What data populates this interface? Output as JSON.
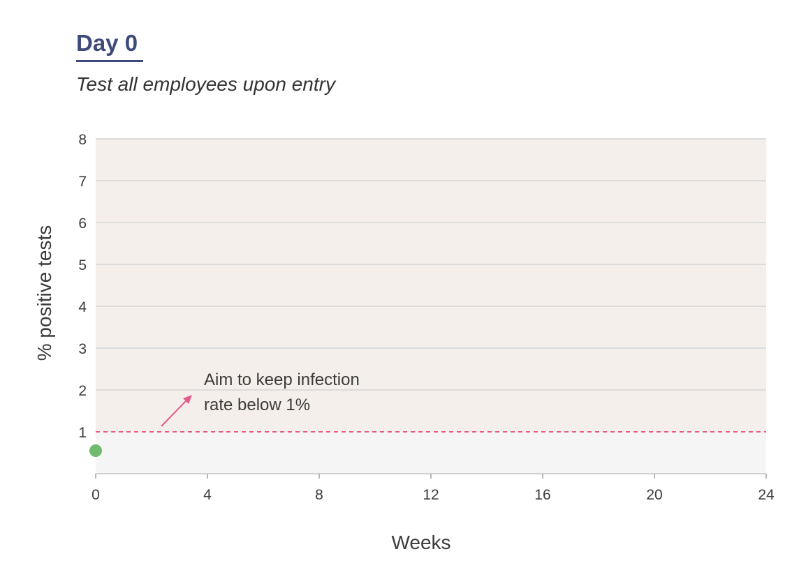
{
  "header": {
    "title": "Day 0",
    "subtitle": "Test all employees upon entry"
  },
  "chart_data": {
    "type": "scatter",
    "xlabel": "Weeks",
    "ylabel": "% positive tests",
    "xlim": [
      0,
      24
    ],
    "ylim": [
      0,
      8
    ],
    "x_ticks": [
      0,
      4,
      8,
      12,
      16,
      20,
      24
    ],
    "y_ticks": [
      1,
      2,
      3,
      4,
      5,
      6,
      7,
      8
    ],
    "grid": "horizontal",
    "threshold": {
      "value": 1,
      "color": "#e85a8a",
      "style": "dashed"
    },
    "regions": [
      {
        "from": 1,
        "to": 8,
        "color": "#f4efea"
      },
      {
        "from": 0,
        "to": 1,
        "color": "#f5f5f5"
      }
    ],
    "series": [
      {
        "x": [
          0
        ],
        "y": [
          0.55
        ],
        "color": "#6fba6f"
      }
    ],
    "annotation": {
      "lines": [
        "Aim to keep infection",
        "rate below 1%"
      ],
      "arrow_color": "#e85a8a"
    }
  }
}
